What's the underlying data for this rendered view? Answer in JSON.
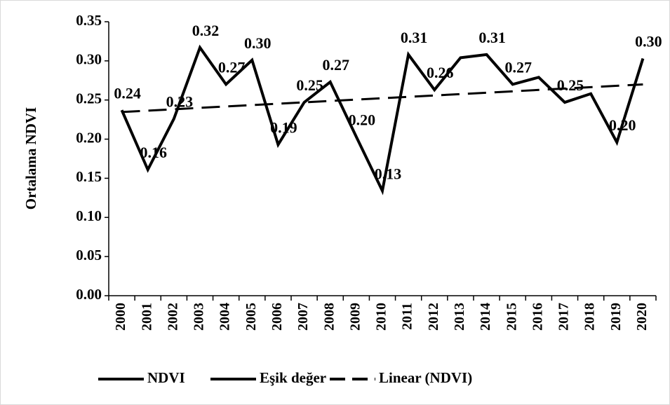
{
  "chart_data": {
    "type": "line",
    "ylabel": "Ortalama NDVI",
    "categories": [
      "2000",
      "2001",
      "2002",
      "2003",
      "2004",
      "2005",
      "2006",
      "2007",
      "2008",
      "2009",
      "2010",
      "2011",
      "2012",
      "2013",
      "2014",
      "2015",
      "2016",
      "2017",
      "2018",
      "2019",
      "2020"
    ],
    "series": [
      {
        "name": "NDVI",
        "color": "#000000",
        "values": [
          0.237,
          0.161,
          0.226,
          0.317,
          0.27,
          0.301,
          0.193,
          0.247,
          0.273,
          0.203,
          0.134,
          0.308,
          0.263,
          0.304,
          0.308,
          0.27,
          0.279,
          0.247,
          0.258,
          0.196,
          0.303
        ],
        "value_labels": [
          "0.24",
          "0.16",
          "0.23",
          "0.32",
          "0.27",
          "0.30",
          "0.19",
          "0.25",
          "0.27",
          "0.20",
          "0.13",
          "0.31",
          "0.26",
          null,
          "0.31",
          "0.27",
          null,
          "0.25",
          null,
          "0.20",
          "0.30"
        ]
      },
      {
        "name": "Eşik değer",
        "color": "#000000",
        "values": [
          null,
          null,
          null,
          null,
          null,
          null,
          null,
          null,
          null,
          null,
          null,
          null,
          null,
          null,
          null,
          null,
          null,
          null,
          null,
          null,
          null
        ]
      }
    ],
    "trendline": {
      "name": "Linear (NDVI)",
      "of": "NDVI",
      "color": "#000000"
    },
    "ylim": [
      0,
      0.35
    ],
    "yticks": [
      {
        "value": 0,
        "label": "0.00"
      },
      {
        "value": 0.05,
        "label": "0.05"
      },
      {
        "value": 0.1,
        "label": "0.10"
      },
      {
        "value": 0.15,
        "label": "0.15"
      },
      {
        "value": 0.2,
        "label": "0.20"
      },
      {
        "value": 0.25,
        "label": "0.25"
      },
      {
        "value": 0.3,
        "label": "0.30"
      },
      {
        "value": 0.35,
        "label": "0.35"
      }
    ],
    "legend": "bottom"
  }
}
